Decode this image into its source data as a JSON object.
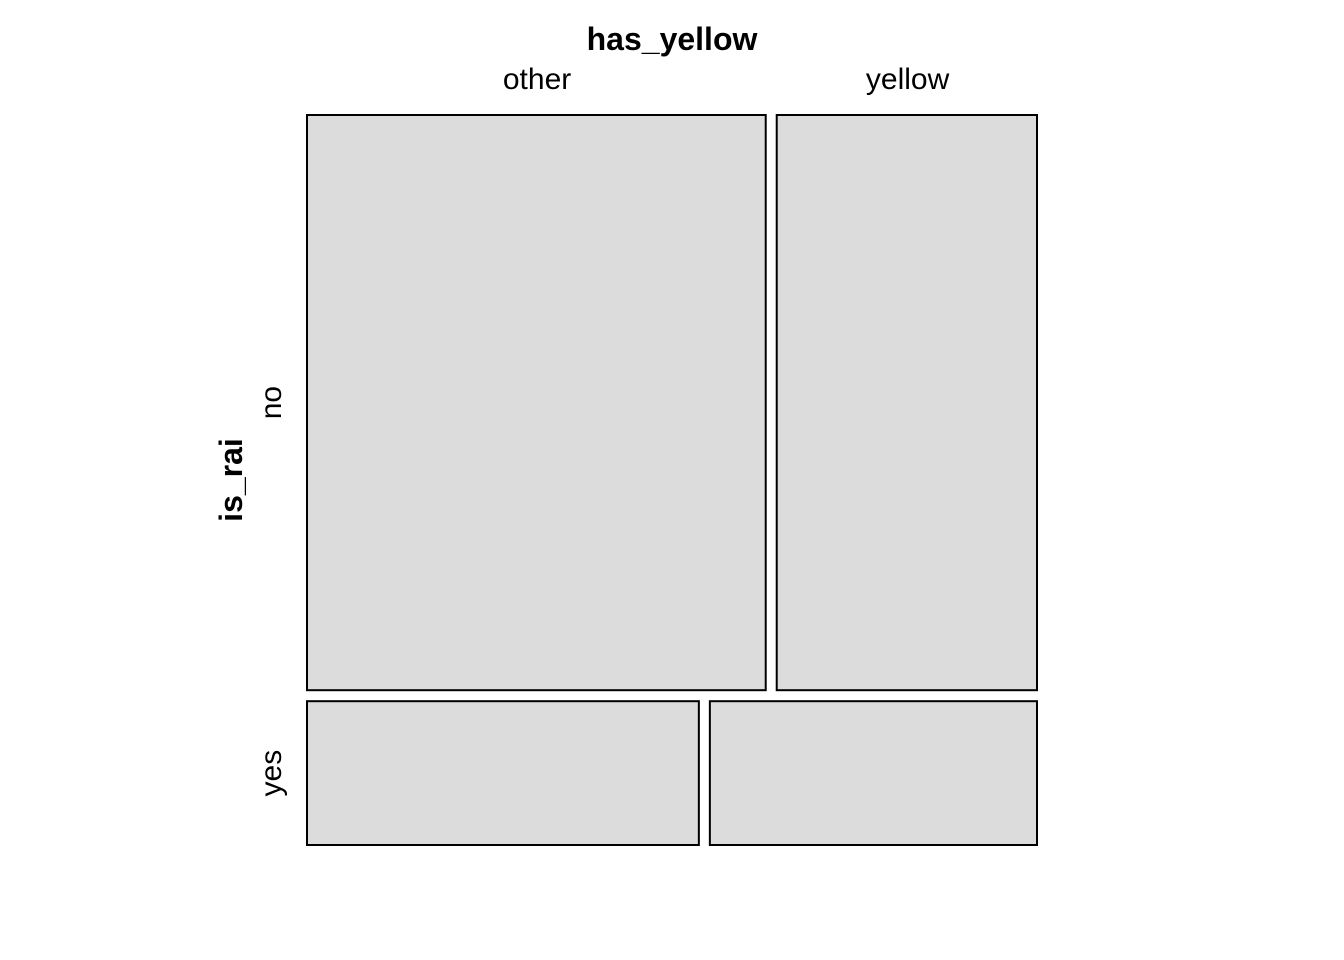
{
  "chart_data": {
    "type": "mosaic",
    "col_variable": "has_yellow",
    "row_variable": "is_rai",
    "col_levels": [
      "other",
      "yellow"
    ],
    "row_levels": [
      "no",
      "yes"
    ],
    "col_proportions": [
      0.64,
      0.36
    ],
    "row_proportions": [
      0.8,
      0.2
    ],
    "row_col_proportions": [
      [
        0.638,
        0.362
      ],
      [
        0.545,
        0.455
      ]
    ],
    "tile_fill": "#dcdcdc",
    "tile_stroke": "#000000"
  }
}
